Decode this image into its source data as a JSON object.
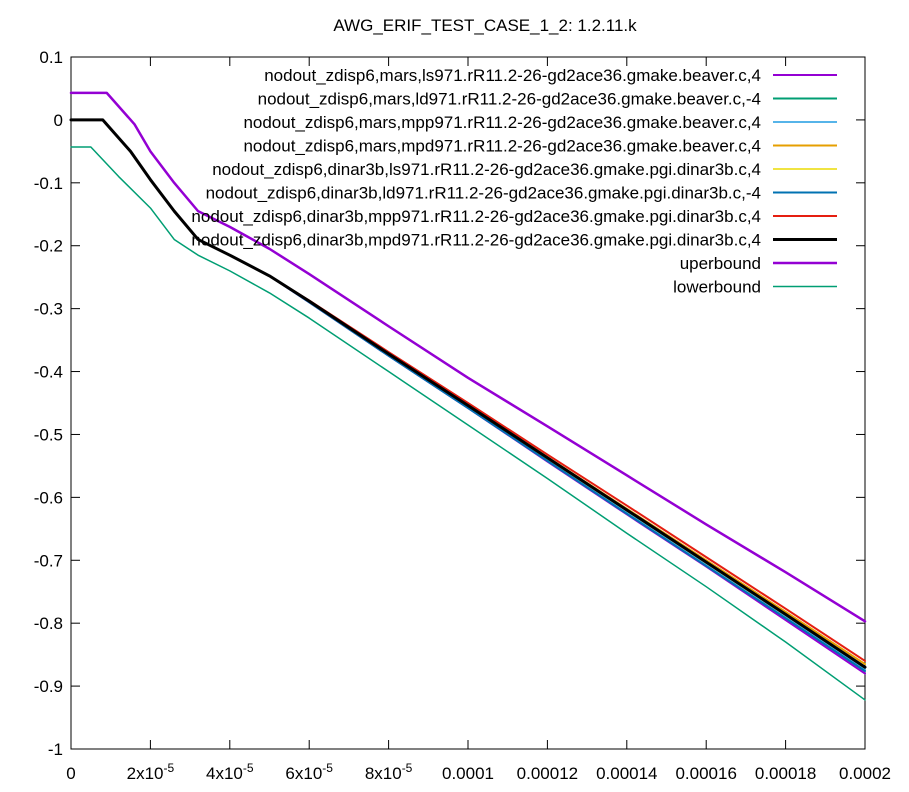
{
  "chart_data": {
    "type": "line",
    "title": "AWG_ERIF_TEST_CASE_1_2: 1.2.11.k",
    "xlabel": "",
    "ylabel": "",
    "xlim": [
      0,
      0.0002
    ],
    "ylim": [
      -1,
      0.1
    ],
    "grid": false,
    "legend_position": "top-right",
    "x_ticks": [
      {
        "value": 0,
        "label": "0"
      },
      {
        "value": 2e-05,
        "label": "2x10",
        "exp": "-5"
      },
      {
        "value": 4e-05,
        "label": "4x10",
        "exp": "-5"
      },
      {
        "value": 6e-05,
        "label": "6x10",
        "exp": "-5"
      },
      {
        "value": 8e-05,
        "label": "8x10",
        "exp": "-5"
      },
      {
        "value": 0.0001,
        "label": "0.0001"
      },
      {
        "value": 0.00012,
        "label": "0.00012"
      },
      {
        "value": 0.00014,
        "label": "0.00014"
      },
      {
        "value": 0.00016,
        "label": "0.00016"
      },
      {
        "value": 0.00018,
        "label": "0.00018"
      },
      {
        "value": 0.0002,
        "label": "0.0002"
      }
    ],
    "y_ticks": [
      {
        "value": 0.1,
        "label": "0.1"
      },
      {
        "value": 0,
        "label": "0"
      },
      {
        "value": -0.1,
        "label": "-0.1"
      },
      {
        "value": -0.2,
        "label": "-0.2"
      },
      {
        "value": -0.3,
        "label": "-0.3"
      },
      {
        "value": -0.4,
        "label": "-0.4"
      },
      {
        "value": -0.5,
        "label": "-0.5"
      },
      {
        "value": -0.6,
        "label": "-0.6"
      },
      {
        "value": -0.7,
        "label": "-0.7"
      },
      {
        "value": -0.8,
        "label": "-0.8"
      },
      {
        "value": -0.9,
        "label": "-0.9"
      },
      {
        "value": -1,
        "label": "-1"
      }
    ],
    "series": [
      {
        "name": "nodout_zdisp6,mars,ls971.rR11.2-26-gd2ace36.gmake.beaver.c,4",
        "color": "#9400d3",
        "width": 2,
        "x": [
          0,
          8e-06,
          1.5e-05,
          2e-05,
          2.6e-05,
          3.2e-05,
          4e-05,
          5e-05,
          6e-05,
          8e-05,
          0.0001,
          0.00012,
          0.00014,
          0.00016,
          0.00018,
          0.0002
        ],
        "y": [
          0.0,
          0.0,
          -0.05,
          -0.095,
          -0.145,
          -0.19,
          -0.215,
          -0.248,
          -0.29,
          -0.375,
          -0.458,
          -0.543,
          -0.627,
          -0.71,
          -0.795,
          -0.88
        ]
      },
      {
        "name": "nodout_zdisp6,mars,ld971.rR11.2-26-gd2ace36.gmake.beaver.c,-4",
        "color": "#009e73",
        "width": 2,
        "x": [
          0,
          8e-06,
          1.5e-05,
          2e-05,
          2.6e-05,
          3.2e-05,
          4e-05,
          5e-05,
          6e-05,
          8e-05,
          0.0001,
          0.00012,
          0.00014,
          0.00016,
          0.00018,
          0.0002
        ],
        "y": [
          0.0,
          0.0,
          -0.05,
          -0.095,
          -0.145,
          -0.19,
          -0.215,
          -0.248,
          -0.289,
          -0.374,
          -0.457,
          -0.541,
          -0.625,
          -0.708,
          -0.791,
          -0.876
        ]
      },
      {
        "name": "nodout_zdisp6,mars,mpp971.rR11.2-26-gd2ace36.gmake.beaver.c,4",
        "color": "#56b4e9",
        "width": 2,
        "x": [
          0,
          8e-06,
          1.5e-05,
          2e-05,
          2.6e-05,
          3.2e-05,
          4e-05,
          5e-05,
          6e-05,
          8e-05,
          0.0001,
          0.00012,
          0.00014,
          0.00016,
          0.00018,
          0.0002
        ],
        "y": [
          0.0,
          0.0,
          -0.05,
          -0.095,
          -0.145,
          -0.19,
          -0.215,
          -0.248,
          -0.289,
          -0.373,
          -0.456,
          -0.54,
          -0.623,
          -0.706,
          -0.789,
          -0.873
        ]
      },
      {
        "name": "nodout_zdisp6,mars,mpd971.rR11.2-26-gd2ace36.gmake.beaver.c,4",
        "color": "#e69f00",
        "width": 2,
        "x": [
          0,
          8e-06,
          1.5e-05,
          2e-05,
          2.6e-05,
          3.2e-05,
          4e-05,
          5e-05,
          6e-05,
          8e-05,
          0.0001,
          0.00012,
          0.00014,
          0.00016,
          0.00018,
          0.0002
        ],
        "y": [
          0.0,
          0.0,
          -0.05,
          -0.095,
          -0.145,
          -0.19,
          -0.215,
          -0.248,
          -0.288,
          -0.371,
          -0.453,
          -0.536,
          -0.618,
          -0.7,
          -0.782,
          -0.865
        ]
      },
      {
        "name": "nodout_zdisp6,dinar3b,ls971.rR11.2-26-gd2ace36.gmake.pgi.dinar3b.c,4",
        "color": "#f0e442",
        "width": 2,
        "x": [
          0,
          8e-06,
          1.5e-05,
          2e-05,
          2.6e-05,
          3.2e-05,
          4e-05,
          5e-05,
          6e-05,
          8e-05,
          0.0001,
          0.00012,
          0.00014,
          0.00016,
          0.00018,
          0.0002
        ],
        "y": [
          0.0,
          0.0,
          -0.05,
          -0.095,
          -0.145,
          -0.19,
          -0.215,
          -0.248,
          -0.289,
          -0.372,
          -0.455,
          -0.538,
          -0.621,
          -0.704,
          -0.787,
          -0.87
        ]
      },
      {
        "name": "nodout_zdisp6,dinar3b,ld971.rR11.2-26-gd2ace36.gmake.pgi.dinar3b.c,-4",
        "color": "#0072b2",
        "width": 2,
        "x": [
          0,
          8e-06,
          1.5e-05,
          2e-05,
          2.6e-05,
          3.2e-05,
          4e-05,
          5e-05,
          6e-05,
          8e-05,
          0.0001,
          0.00012,
          0.00014,
          0.00016,
          0.00018,
          0.0002
        ],
        "y": [
          0.0,
          0.0,
          -0.05,
          -0.095,
          -0.145,
          -0.19,
          -0.215,
          -0.248,
          -0.29,
          -0.375,
          -0.458,
          -0.542,
          -0.626,
          -0.709,
          -0.792,
          -0.876
        ]
      },
      {
        "name": "nodout_zdisp6,dinar3b,mpp971.rR11.2-26-gd2ace36.gmake.pgi.dinar3b.c,4",
        "color": "#e51e10",
        "width": 2,
        "x": [
          0,
          8e-06,
          1.5e-05,
          2e-05,
          2.6e-05,
          3.2e-05,
          4e-05,
          5e-05,
          6e-05,
          8e-05,
          0.0001,
          0.00012,
          0.00014,
          0.00016,
          0.00018,
          0.0002
        ],
        "y": [
          0.0,
          0.0,
          -0.05,
          -0.095,
          -0.145,
          -0.19,
          -0.215,
          -0.248,
          -0.287,
          -0.369,
          -0.45,
          -0.532,
          -0.613,
          -0.695,
          -0.777,
          -0.86
        ]
      },
      {
        "name": "nodout_zdisp6,dinar3b,mpd971.rR11.2-26-gd2ace36.gmake.pgi.dinar3b.c,4",
        "color": "#000000",
        "width": 3,
        "x": [
          0,
          8e-06,
          1.5e-05,
          2e-05,
          2.6e-05,
          3.2e-05,
          4e-05,
          5e-05,
          6e-05,
          8e-05,
          0.0001,
          0.00012,
          0.00014,
          0.00016,
          0.00018,
          0.0002
        ],
        "y": [
          0.0,
          0.0,
          -0.05,
          -0.095,
          -0.145,
          -0.19,
          -0.215,
          -0.248,
          -0.288,
          -0.372,
          -0.454,
          -0.537,
          -0.62,
          -0.703,
          -0.786,
          -0.87
        ]
      },
      {
        "name": "uperbound",
        "color": "#9400d3",
        "width": 2.5,
        "x": [
          0,
          9e-06,
          1.6e-05,
          2e-05,
          2.6e-05,
          3.2e-05,
          4e-05,
          5e-05,
          6e-05,
          8e-05,
          0.0001,
          0.00012,
          0.00014,
          0.00016,
          0.00018,
          0.0002
        ],
        "y": [
          0.043,
          0.043,
          -0.007,
          -0.05,
          -0.1,
          -0.145,
          -0.17,
          -0.205,
          -0.245,
          -0.328,
          -0.41,
          -0.487,
          -0.565,
          -0.643,
          -0.719,
          -0.797
        ]
      },
      {
        "name": "lowerbound",
        "color": "#009e73",
        "width": 1.5,
        "x": [
          0,
          5e-06,
          1.2e-05,
          2e-05,
          2.6e-05,
          3.2e-05,
          4e-05,
          5e-05,
          6e-05,
          8e-05,
          0.0001,
          0.00012,
          0.00014,
          0.00016,
          0.00018,
          0.0002
        ],
        "y": [
          -0.043,
          -0.043,
          -0.09,
          -0.14,
          -0.19,
          -0.215,
          -0.24,
          -0.275,
          -0.315,
          -0.4,
          -0.485,
          -0.57,
          -0.657,
          -0.742,
          -0.83,
          -0.922
        ]
      }
    ]
  }
}
